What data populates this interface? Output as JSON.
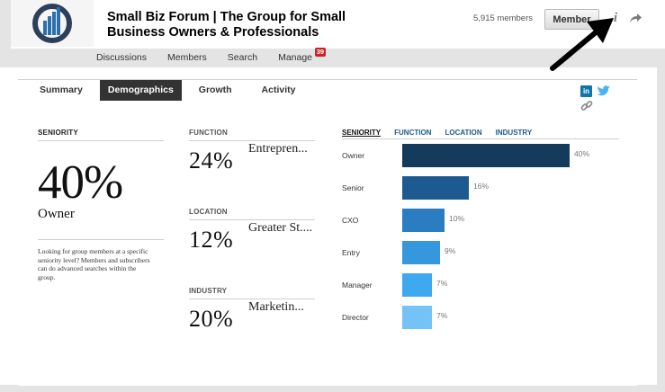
{
  "header": {
    "title": "Small Biz Forum | The Group for Small Business Owners & Professionals",
    "member_count": "5,915 members",
    "member_button": "Member",
    "info_icon": "info-icon",
    "share_icon": "share-icon"
  },
  "nav": [
    {
      "label": "Discussions"
    },
    {
      "label": "Members"
    },
    {
      "label": "Search"
    },
    {
      "label": "Manage",
      "badge": "39"
    }
  ],
  "tabs": [
    {
      "label": "Summary",
      "active": false
    },
    {
      "label": "Demographics",
      "active": true
    },
    {
      "label": "Growth",
      "active": false
    },
    {
      "label": "Activity",
      "active": false
    }
  ],
  "social": {
    "linkedin": "in",
    "twitter_icon": "twitter-icon",
    "link_icon": "link-icon"
  },
  "seniority": {
    "label": "SENIORITY",
    "top_percent": "40%",
    "top_name": "Owner",
    "note": "Looking for group members at a specific seniority level? Members and subscribers can do advanced searches within the group."
  },
  "function": {
    "label": "FUNCTION",
    "percent": "24%",
    "name": "Entrepren..."
  },
  "location": {
    "label": "LOCATION",
    "percent": "12%",
    "name": "Greater St...."
  },
  "industry": {
    "label": "INDUSTRY",
    "percent": "20%",
    "name": "Marketin..."
  },
  "chart_data": {
    "type": "bar",
    "orientation": "horizontal",
    "tabs": [
      "SENIORITY",
      "FUNCTION",
      "LOCATION",
      "INDUSTRY"
    ],
    "active_tab": "SENIORITY",
    "categories": [
      "Owner",
      "Senior",
      "CXO",
      "Entry",
      "Manager",
      "Director"
    ],
    "values": [
      40,
      16,
      10,
      9,
      7,
      7
    ],
    "value_labels": [
      "40%",
      "16%",
      "10%",
      "9%",
      "7%",
      "7%"
    ],
    "colors": [
      "#143a5c",
      "#1d5a90",
      "#2a7dc0",
      "#3597dc",
      "#3ea8f0",
      "#74c3f6"
    ],
    "xlim": [
      0,
      40
    ]
  }
}
